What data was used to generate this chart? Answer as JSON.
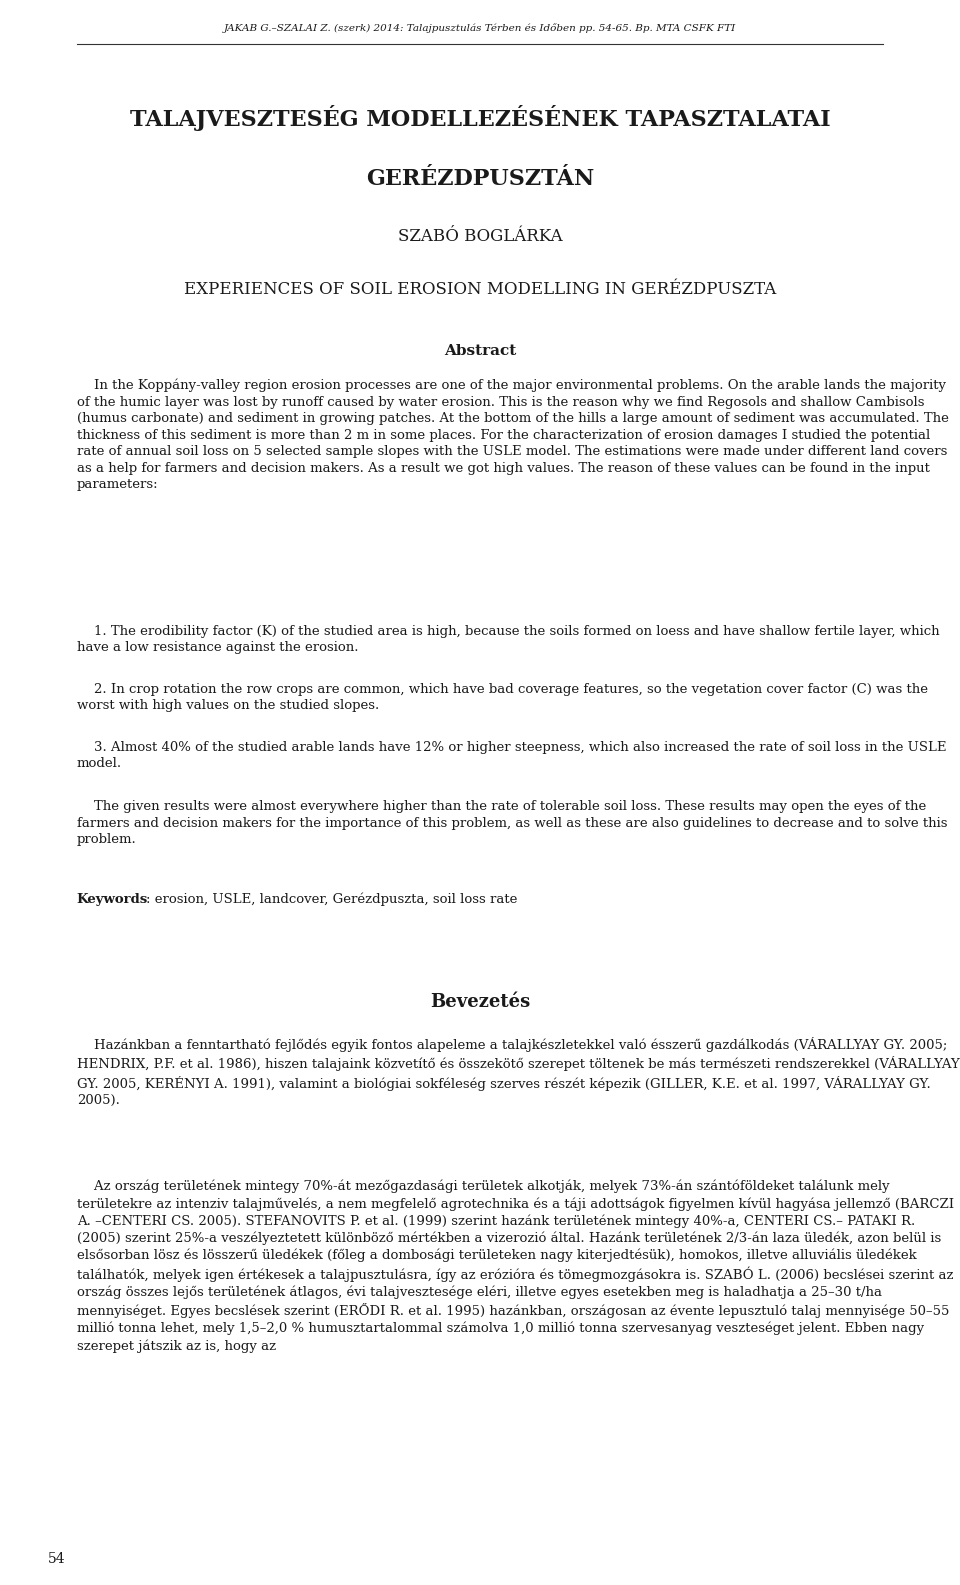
{
  "bg_color": "#ffffff",
  "text_color": "#1a1a1a",
  "header_line": "JAKAB G.–SZALAI Z. (szerk) 2014: Talajpusztulás Térben és Időben pp. 54-65. Bp. MTA CSFK FTI",
  "title1": "TALAJVESZTESÉG MODELLEZÉSÉNEK TAPASZTALATAI",
  "title2": "GERÉZDPUSZTÁN",
  "author": "SZABÓ BOGLÁRKA",
  "subtitle": "EXPERIENCES OF SOIL EROSION MODELLING IN GERÉZDPUSZTA",
  "abstract_title": "Abstract",
  "abstract_body": "In the Koppány-valley region erosion processes are one of the major environmental problems. On the arable lands the majority of the humic layer was lost by runoff caused by water erosion. This is the reason why we find Regosols and shallow Cambisols (humus carbonate) and sediment in growing patches. At the bottom of the hills a large amount of sediment was accumulated. The thickness of this sediment is more than 2 m in some places. For the characterization of erosion damages I studied the potential rate of annual soil loss on 5 selected sample slopes with the USLE model. The estimations were made under different land covers as a help for farmers and decision makers. As a result we got high values. The reason of these values can be found in the input parameters:",
  "point1": "1. The erodibility factor (K) of the studied area is high, because the soils formed on loess and have shallow fertile layer, which have a low resistance against the erosion.",
  "point2": "2. In crop rotation the row crops are common, which have bad coverage features, so the vegetation cover factor (C) was the worst with high values on the studied slopes.",
  "point3": "3. Almost 40% of the studied arable lands have 12% or higher steepness, which also increased the rate of soil loss in the USLE model.",
  "conclusion": "The given results were almost everywhere higher than the rate of tolerable soil loss. These results may open the eyes of the farmers and decision makers for the importance of this problem, as well as these are also guidelines to decrease and to solve this problem.",
  "keywords_bold": "Keywords",
  "keywords_rest": ": erosion, USLE, landcover, Gerézdpuszta, soil loss rate",
  "section_title": "Bevezetés",
  "para1": "Hazánkban a fenntartható fejlődés egyik fontos alapeleme a talajkészletekkel való ésszerű gazdálkodás (VÁRALLYAY GY. 2005; HENDRIX, P.F. et al. 1986), hiszen talajaink közvetítő és összekötő szerepet töltenek be más természeti rendszerekkel (VÁRALLYAY GY. 2005, KERÉNYI A. 1991), valamint a biológiai sokféleség szerves részét képezik (GILLER, K.E. et al. 1997, VÁRALLYAY GY. 2005).",
  "para2": "Az ország területének mintegy 70%-át mezőgazdasági területek alkotják, melyek 73%-án szántóföldeket találunk mely területekre az intenziv talajművelés, a nem megfelelő agrotechnika és a táji adottságok figyelmen kívül hagyása jellemző (BARCZI A. –CENTERI CS. 2005). STEFANOVITS P. et al. (1999) szerint hazánk területének mintegy 40%-a, CENTERI CS.– PATAKI R. (2005) szerint 25%-a veszélyeztetett különböző mértékben a vizerozió által. Hazánk területének 2/3-án laza üledék, azon belül is elsősorban lösz és lösszerű üledékek (főleg a dombosági területeken nagy kiterjedtésük), homokos, illetve alluviális üledékek találhatók, melyek igen értékesek a talajpusztulásra, így az erózióra és tömegmozgásokra is. SZABÓ L. (2006) becslései szerint az ország összes lejős területének átlagos, évi talajvesztesége eléri, illetve egyes esetekben meg is haladhatja a 25–30 t/ha mennyiséget. Egyes becslések szerint (ERŐDI R. et al. 1995) hazánkban, országosan az évente lepusztuló talaj mennyisége 50–55 millió tonna lehet, mely 1,5–2,0 % humusztartalommal számolva 1,0 millió tonna szervesanyag veszteséget jelent. Ebben nagy szerepet játszik az is, hogy az",
  "footer_number": "54"
}
